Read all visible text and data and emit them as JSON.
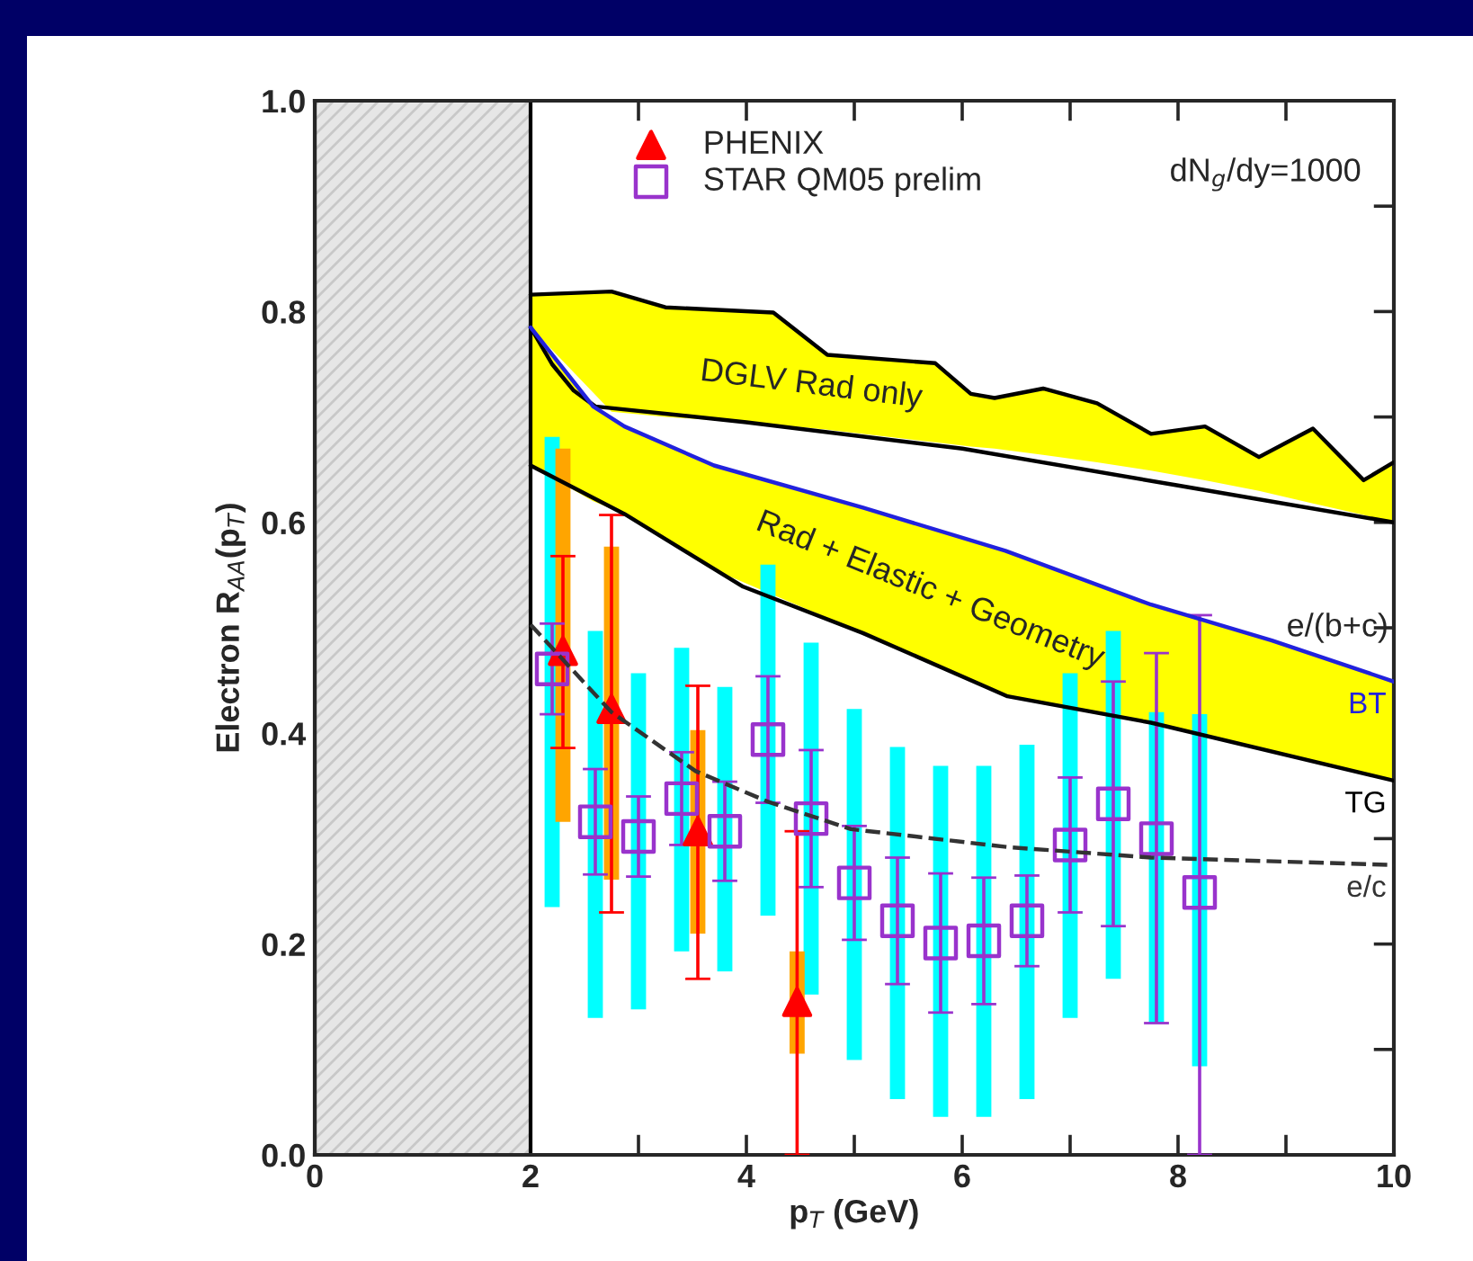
{
  "chart_data": {
    "type": "line",
    "xlabel": "p$_{T}$ (GeV)",
    "ylabel": "Electron R$_{AA}$(p$_{T}$)",
    "xlim": [
      0,
      10
    ],
    "ylim": [
      0,
      1.0
    ],
    "xticks": [
      0,
      {
        "value": 1,
        "label": null
      },
      2,
      {
        "value": 3,
        "label": null
      },
      4,
      {
        "value": 5,
        "label": null
      },
      6,
      {
        "value": 7,
        "label": null
      },
      8,
      {
        "value": 9,
        "label": null
      },
      10
    ],
    "yticks": [
      {
        "value": 0,
        "label": "0.0"
      },
      {
        "value": 0.1,
        "label": null
      },
      {
        "value": 0.2,
        "label": "0.2"
      },
      {
        "value": 0.3,
        "label": null
      },
      {
        "value": 0.4,
        "label": "0.4"
      },
      {
        "value": 0.5,
        "label": null
      },
      {
        "value": 0.6,
        "label": "0.6"
      },
      {
        "value": 0.7,
        "label": null
      },
      {
        "value": 0.8,
        "label": "0.8"
      },
      {
        "value": 0.9,
        "label": null
      },
      {
        "value": 1.0,
        "label": "1.0"
      }
    ],
    "grid": false,
    "legend": "top",
    "bands": [
      {
        "axis": "x",
        "from": 0,
        "to": 2,
        "color": "#e6e6e6"
      }
    ],
    "annotations": [
      "DGLV Rad only",
      "Rad + Elastic + Geometry",
      "e/(b+c)",
      "dN$_{g}$/dy=1000"
    ],
    "series": [
      {
        "color": "#000000",
        "x": [
          2.0,
          2.75,
          3.25,
          4.25,
          4.75,
          5.75,
          6.08,
          6.3,
          6.75,
          7.25,
          7.75,
          8.25,
          8.75,
          9.25,
          9.72,
          10
        ],
        "values": [
          0.816,
          0.819,
          0.804,
          0.799,
          0.759,
          0.751,
          0.722,
          0.718,
          0.727,
          0.713,
          0.684,
          0.691,
          0.662,
          0.689,
          0.64,
          0.657
        ],
        "lower": [
          0.785,
          0.705,
          0.7,
          0.693,
          0.688,
          0.676,
          0.672,
          0.67,
          0.664,
          0.657,
          0.649,
          0.64,
          0.63,
          0.618,
          0.607,
          0.6
        ],
        "upper": [
          0.816,
          0.819,
          0.804,
          0.799,
          0.759,
          0.751,
          0.722,
          0.718,
          0.727,
          0.713,
          0.684,
          0.691,
          0.662,
          0.689,
          0.64,
          0.657
        ]
      },
      {
        "color": "#000000",
        "x": [
          2.0,
          2.2,
          2.4,
          2.6,
          4.0,
          6.0,
          8.0,
          10
        ],
        "values": [
          0.785,
          0.75,
          0.725,
          0.71,
          0.695,
          0.67,
          0.635,
          0.6
        ]
      },
      {
        "name": "BT",
        "color": "#2222dd",
        "x": [
          2.0,
          2.58,
          2.87,
          3.7,
          5.08,
          6.4,
          7.75,
          8.87,
          10
        ],
        "values": [
          0.785,
          0.71,
          0.691,
          0.654,
          0.614,
          0.573,
          0.522,
          0.488,
          0.449
        ],
        "lower": [
          0.654,
          0.62,
          0.608,
          0.555,
          0.495,
          0.435,
          0.41,
          0.383,
          0.355
        ],
        "upper": [
          0.785,
          0.71,
          0.691,
          0.654,
          0.614,
          0.573,
          0.522,
          0.488,
          0.449
        ]
      },
      {
        "name": "TG",
        "color": "#000000",
        "x": [
          2.0,
          2.87,
          3.97,
          5.08,
          6.42,
          7.75,
          10
        ],
        "values": [
          0.654,
          0.608,
          0.539,
          0.495,
          0.435,
          0.41,
          0.355
        ]
      },
      {
        "name": "e/c",
        "color": "#333333",
        "line_style": "dashed",
        "x": [
          2.0,
          2.75,
          3.53,
          4.2,
          4.97,
          6.42,
          7.75,
          10
        ],
        "values": [
          0.503,
          0.42,
          0.364,
          0.335,
          0.309,
          0.292,
          0.282,
          0.275
        ]
      },
      {
        "type": "bar",
        "color": "#00ffff",
        "x": [
          2.2,
          2.6,
          3.0,
          3.4,
          3.8,
          4.2,
          4.6,
          5.0,
          5.4,
          5.8,
          6.2,
          6.6,
          7.0,
          7.4,
          7.8,
          8.2
        ],
        "base": [
          0.235,
          0.13,
          0.138,
          0.193,
          0.174,
          0.227,
          0.152,
          0.09,
          0.053,
          0.036,
          0.036,
          0.053,
          0.13,
          0.167,
          0.125,
          0.084
        ],
        "values": [
          0.446,
          0.367,
          0.319,
          0.288,
          0.27,
          0.333,
          0.334,
          0.333,
          0.334,
          0.333,
          0.333,
          0.336,
          0.327,
          0.33,
          0.295,
          0.334
        ]
      },
      {
        "type": "bar",
        "color": "#ffa500",
        "x": [
          2.3,
          2.75,
          3.55,
          4.47
        ],
        "base": [
          0.316,
          0.261,
          0.21,
          0.096
        ],
        "values": [
          0.354,
          0.316,
          0.193,
          0.097
        ]
      },
      {
        "type": "scatter",
        "name": "PHENIX",
        "color": "#ff0000",
        "marker": "triangle",
        "x": [
          2.3,
          2.75,
          3.55,
          4.47
        ],
        "values": [
          0.478,
          0.423,
          0.307,
          0.145
        ],
        "errors": [
          [
            0.386,
            0.568
          ],
          [
            0.23,
            0.607
          ],
          [
            0.167,
            0.445
          ],
          [
            0,
            0.307
          ]
        ]
      },
      {
        "type": "scatter",
        "name": "STAR QM05 prelim",
        "color": "#9933cc",
        "marker": "square",
        "x": [
          2.2,
          2.6,
          3.0,
          3.4,
          3.8,
          4.2,
          4.6,
          5.0,
          5.4,
          5.8,
          6.2,
          6.6,
          7.0,
          7.4,
          7.8,
          8.2
        ],
        "values": [
          0.461,
          0.316,
          0.302,
          0.338,
          0.307,
          0.394,
          0.319,
          0.258,
          0.222,
          0.201,
          0.203,
          0.222,
          0.294,
          0.333,
          0.3,
          0.249
        ],
        "errors": [
          [
            0.418,
            0.504
          ],
          [
            0.266,
            0.366
          ],
          [
            0.264,
            0.34
          ],
          [
            0.294,
            0.382
          ],
          [
            0.26,
            0.354
          ],
          [
            0.334,
            0.454
          ],
          [
            0.254,
            0.384
          ],
          [
            0.204,
            0.312
          ],
          [
            0.162,
            0.282
          ],
          [
            0.135,
            0.267
          ],
          [
            0.143,
            0.263
          ],
          [
            0.179,
            0.265
          ],
          [
            0.23,
            0.358
          ],
          [
            0.217,
            0.449
          ],
          [
            0.125,
            0.476
          ],
          [
            0,
            0.512
          ]
        ]
      }
    ]
  }
}
